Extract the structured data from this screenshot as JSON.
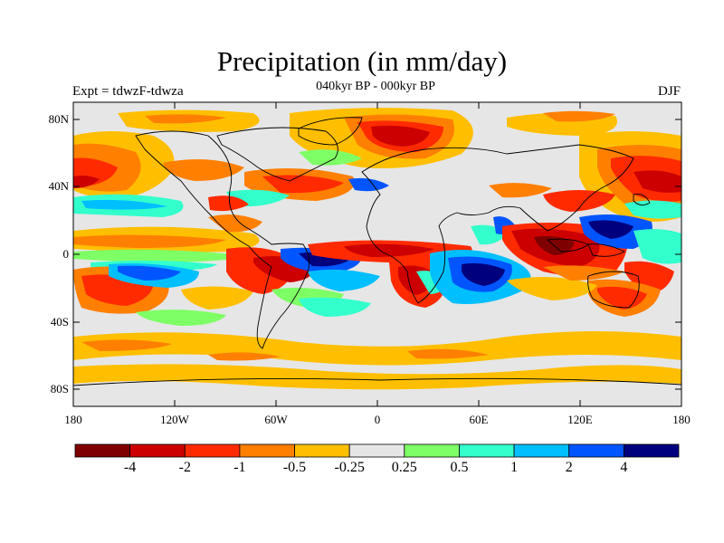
{
  "title": "Precipitation (in mm/day)",
  "subtitle": "040kyr BP - 000kyr BP",
  "experiment": "Expt = tdwzF-tdwza",
  "season": "DJF",
  "lat_labels": [
    "80N",
    "40N",
    "0",
    "40S",
    "80S"
  ],
  "lon_labels": [
    "180",
    "120W",
    "60W",
    "0",
    "60E",
    "120E",
    "180"
  ],
  "colorbar": {
    "colors": [
      "#7f0000",
      "#cc0000",
      "#ff2a00",
      "#ff7f00",
      "#ffbf00",
      "#e6e6e6",
      "#7fff66",
      "#33ffcc",
      "#00bfff",
      "#0055ff",
      "#00007f"
    ],
    "labels": [
      "-4",
      "-2",
      "-1",
      "-0.5",
      "-0.25",
      "0.25",
      "0.5",
      "1",
      "2",
      "4"
    ]
  }
}
